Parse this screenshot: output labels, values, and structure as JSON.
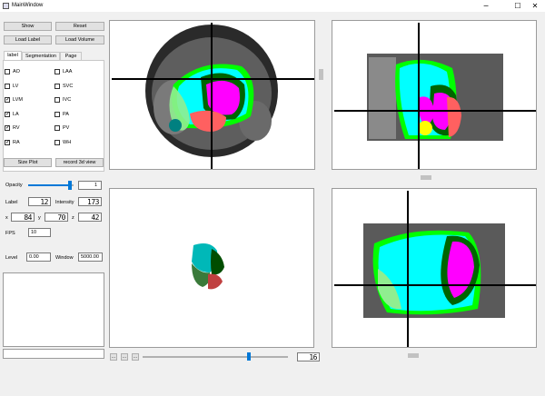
{
  "window": {
    "title": "MainWindow",
    "minimize": "─",
    "maximize": "☐",
    "close": "✕"
  },
  "buttons": {
    "show": "Show",
    "reset": "Reset",
    "load_label": "Load Label",
    "load_volume": "Load Volume",
    "size_plot": "Size Plot",
    "record_3d": "record 3d view"
  },
  "tabs": [
    {
      "label": "label"
    },
    {
      "label": "Segmentation"
    },
    {
      "label": "Page"
    }
  ],
  "labels_left": [
    {
      "name": "AO",
      "checked": false
    },
    {
      "name": "LV",
      "checked": false
    },
    {
      "name": "LVM",
      "checked": true
    },
    {
      "name": "LA",
      "checked": true
    },
    {
      "name": "RV",
      "checked": true
    },
    {
      "name": "RA",
      "checked": true
    }
  ],
  "labels_right": [
    {
      "name": "LAA",
      "checked": false
    },
    {
      "name": "SVC",
      "checked": false
    },
    {
      "name": "IVC",
      "checked": false
    },
    {
      "name": "PA",
      "checked": false
    },
    {
      "name": "PV",
      "checked": false
    },
    {
      "name": "WH",
      "checked": false
    }
  ],
  "opacity": {
    "label": "Opacity",
    "value": "1",
    "slider_fraction": 0.92
  },
  "label_row": {
    "label_text": "Label",
    "label_value": "12",
    "intensity_text": "Intensity",
    "intensity_value": "173"
  },
  "coords": {
    "x_label": "x",
    "x": "84",
    "y_label": "y",
    "y": "70",
    "z_label": "z",
    "z": "42"
  },
  "fps": {
    "label": "FPS",
    "value": "10"
  },
  "window_level": {
    "level_label": "Level",
    "level_value": "0.00",
    "window_label": "Window",
    "window_value": "5000.00"
  },
  "bottom": {
    "btn1": "...",
    "btn2": "...",
    "btn3": "...",
    "slice_value": "16",
    "slider_fraction": 0.72
  },
  "colors": {
    "lv": "#ff00ff",
    "lvm": "#006400",
    "rv": "#00ffff",
    "ra": "#90ee90",
    "la": "#ff6060",
    "ao": "#008080",
    "wh_outline": "#00ff00",
    "pa": "#ffff00"
  }
}
